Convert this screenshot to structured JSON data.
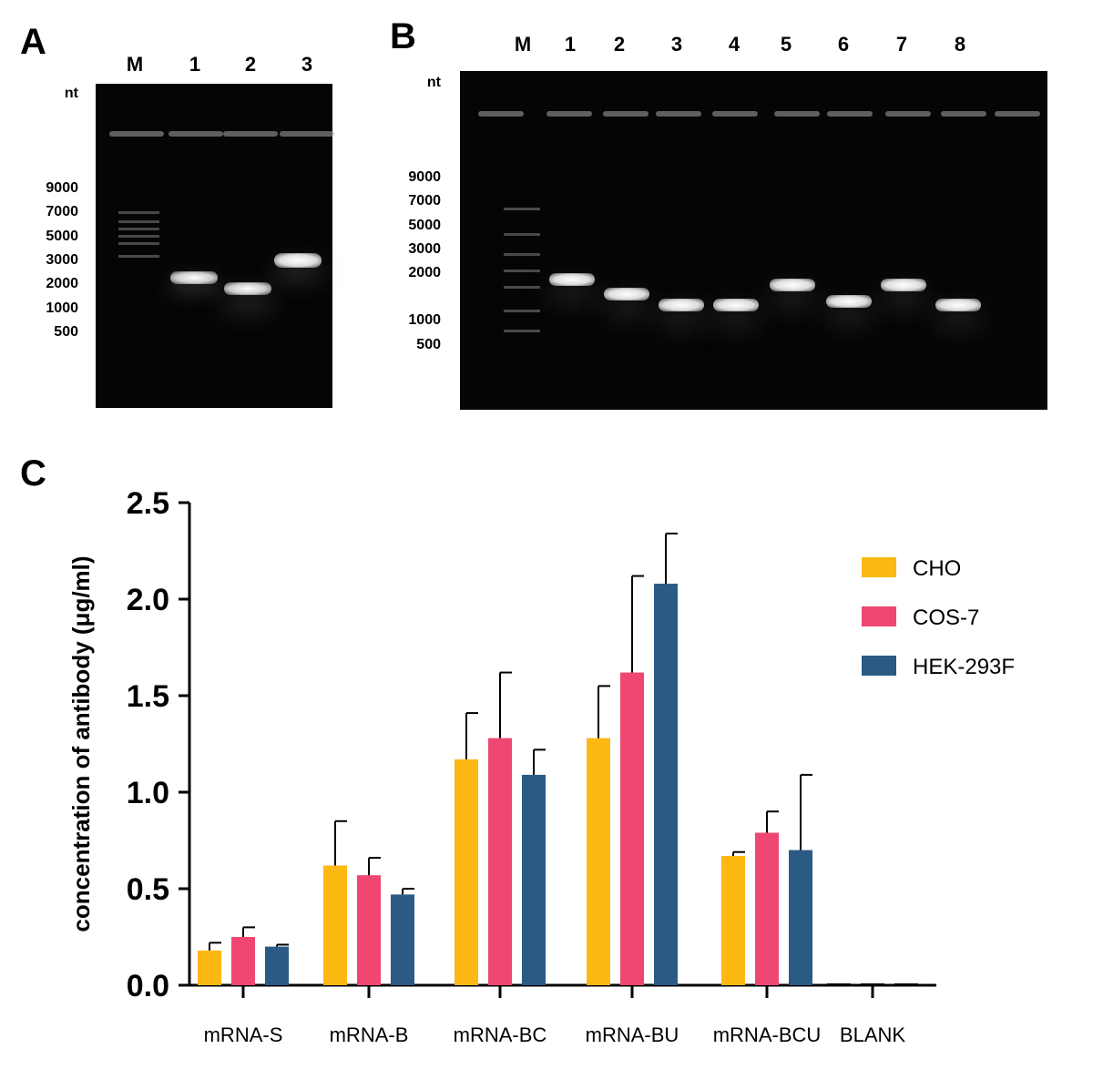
{
  "panelA": {
    "letter": "A",
    "unit": "nt",
    "lanes": [
      "M",
      "1",
      "2",
      "3"
    ],
    "markers": [
      "9000",
      "7000",
      "5000",
      "3000",
      "2000",
      "1000",
      "500"
    ]
  },
  "panelB": {
    "letter": "B",
    "unit": "nt",
    "lanes": [
      "M",
      "1",
      "2",
      "3",
      "4",
      "5",
      "6",
      "7",
      "8"
    ],
    "markers": [
      "9000",
      "7000",
      "5000",
      "3000",
      "2000",
      "1000",
      "500"
    ]
  },
  "panelC": {
    "letter": "C"
  },
  "chart_data": {
    "type": "bar",
    "title": "",
    "ylabel": "concentration of antibody (μg/ml)",
    "xlabel": "",
    "ylim": [
      0,
      2.5
    ],
    "yticks": [
      "0.0",
      "0.5",
      "1.0",
      "1.5",
      "2.0",
      "2.5"
    ],
    "categories": [
      "mRNA-S",
      "mRNA-B",
      "mRNA-BC",
      "mRNA-BU",
      "mRNA-BCU",
      "BLANK"
    ],
    "series": [
      {
        "name": "CHO",
        "color": "#FDB813",
        "values": [
          0.18,
          0.62,
          1.17,
          1.28,
          0.67,
          0.0
        ],
        "errors": [
          0.04,
          0.23,
          0.24,
          0.27,
          0.02,
          0.0
        ]
      },
      {
        "name": "COS-7",
        "color": "#EF4771",
        "values": [
          0.25,
          0.57,
          1.28,
          1.62,
          0.79,
          0.0
        ],
        "errors": [
          0.05,
          0.09,
          0.34,
          0.5,
          0.11,
          0.0
        ]
      },
      {
        "name": "HEK-293F",
        "color": "#2B5A84",
        "values": [
          0.2,
          0.47,
          1.09,
          2.08,
          0.7,
          0.0
        ],
        "errors": [
          0.01,
          0.03,
          0.13,
          0.26,
          0.39,
          0.0
        ]
      }
    ],
    "legend": "top-right",
    "grid": false
  }
}
